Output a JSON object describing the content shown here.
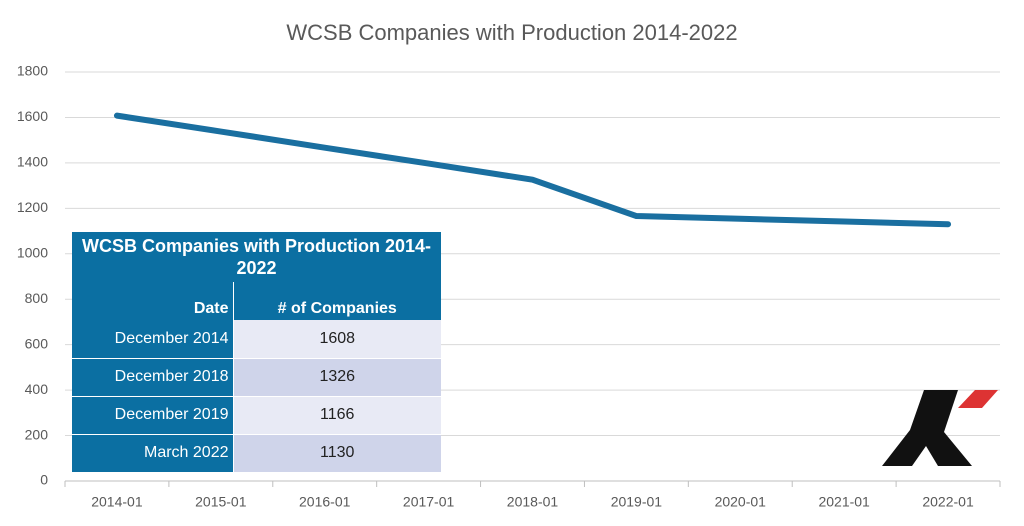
{
  "chart_data": {
    "type": "line",
    "title": "WCSB Companies with Production 2014-2022",
    "categories": [
      "2014-01",
      "2015-01",
      "2016-01",
      "2017-01",
      "2018-01",
      "2019-01",
      "2020-01",
      "2021-01",
      "2022-01"
    ],
    "series": [
      {
        "name": "WCSB Companies with Production",
        "color": "#1a6fa0",
        "values": [
          1608,
          1538,
          1467,
          1397,
          1326,
          1166,
          1154,
          1142,
          1130
        ]
      }
    ],
    "ylim": [
      0,
      1800
    ],
    "yticks": [
      0,
      200,
      400,
      600,
      800,
      1000,
      1200,
      1400,
      1600,
      1800
    ],
    "grid": true
  },
  "table": {
    "title": "WCSB Companies with Production 2014-2022",
    "header": [
      "Date",
      "# of Companies"
    ],
    "rows": [
      [
        "December 2014",
        "1608"
      ],
      [
        "December 2018",
        "1326"
      ],
      [
        "December 2019",
        "1166"
      ],
      [
        "March 2022",
        "1130"
      ]
    ]
  }
}
